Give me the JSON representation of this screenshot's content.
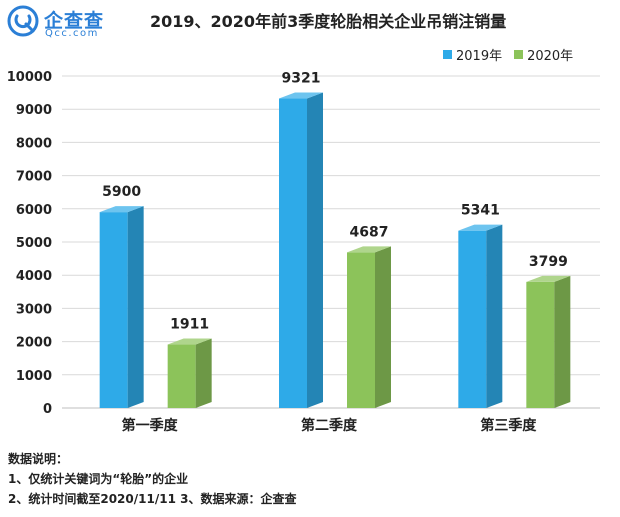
{
  "brand": {
    "name": "企查查",
    "domain": "Qcc.com"
  },
  "chart_data": {
    "type": "bar",
    "title": "2019、2020年前3季度轮胎相关企业吊销注销量",
    "categories": [
      "第一季度",
      "第二季度",
      "第三季度"
    ],
    "series": [
      {
        "name": "2019年",
        "values": [
          5900,
          9321,
          5341
        ],
        "color": "#2eaae8"
      },
      {
        "name": "2020年",
        "values": [
          1911,
          4687,
          3799
        ],
        "color": "#8cc35a"
      }
    ],
    "ylim": [
      0,
      10000
    ],
    "yticks": [
      0,
      1000,
      2000,
      3000,
      4000,
      5000,
      6000,
      7000,
      8000,
      9000,
      10000
    ],
    "grid": true,
    "legend": "top-right",
    "xlabel": "",
    "ylabel": ""
  },
  "notes": {
    "heading": "数据说明：",
    "line1": "1、仅统计关键词为“轮胎”的企业",
    "line2": "2、统计时间截至2020/11/11   3、数据来源：企查查"
  }
}
